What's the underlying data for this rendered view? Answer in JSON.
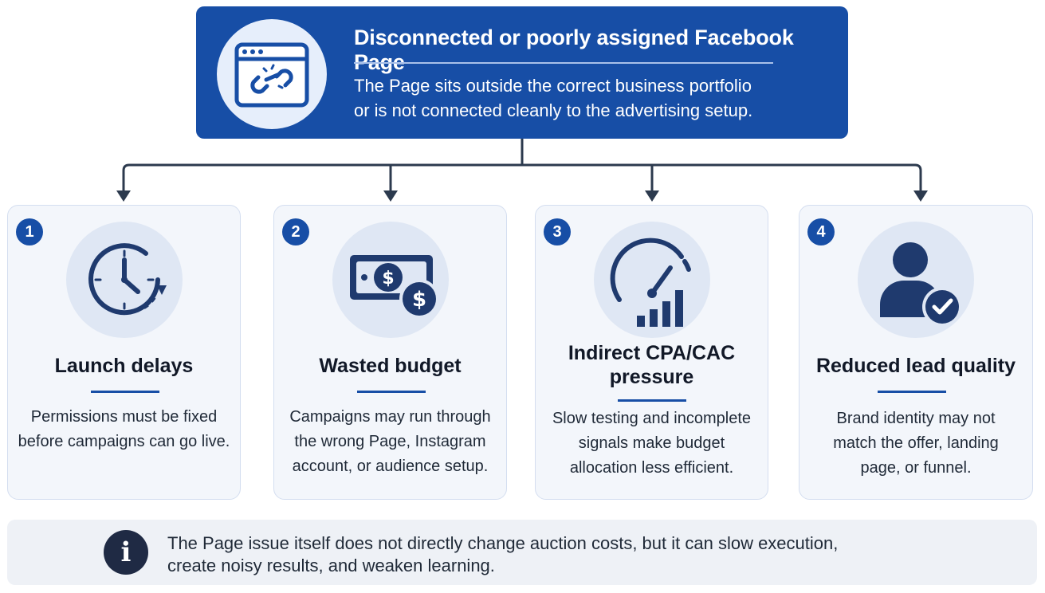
{
  "colors": {
    "primary": "#174ea6",
    "dark_icon": "#1f3a6e",
    "card_bg": "#f3f6fb",
    "note_bg": "#eef1f6"
  },
  "header": {
    "icon": "broken-link-window-icon",
    "title": "Disconnected or poorly assigned Facebook Page",
    "description_line1": "The Page sits outside the correct business portfolio",
    "description_line2": "or is not connected cleanly to the advertising setup."
  },
  "cards": [
    {
      "number": "1",
      "icon": "clock-icon",
      "title": "Launch delays",
      "desc": [
        "Permissions must be fixed",
        "before campaigns can go live."
      ]
    },
    {
      "number": "2",
      "icon": "money-icon",
      "title": "Wasted budget",
      "desc": [
        "Campaigns may run through",
        "the wrong Page, Instagram",
        "account, or audience setup."
      ]
    },
    {
      "number": "3",
      "icon": "gauge-chart-icon",
      "title_line1": "Indirect CPA/CAC",
      "title_line2": "pressure",
      "desc": [
        "Slow testing and incomplete",
        "signals make budget",
        "allocation less efficient."
      ]
    },
    {
      "number": "4",
      "icon": "user-check-icon",
      "title": "Reduced lead quality",
      "desc": [
        "Brand identity may not",
        "match the offer, landing",
        "page, or funnel."
      ]
    }
  ],
  "note": {
    "icon": "info-icon",
    "glyph": "i",
    "line1": "The Page issue itself does not directly change auction costs, but it can slow execution,",
    "line2": "create noisy results, and weaken learning."
  }
}
